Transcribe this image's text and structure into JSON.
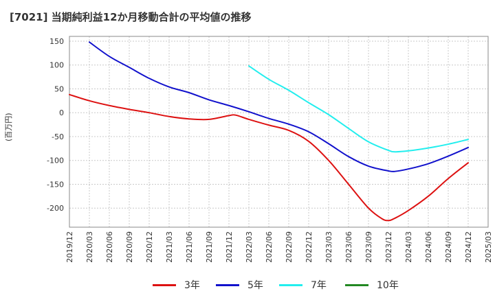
{
  "header": {
    "title": "[7021]  当期純利益12か月移動合計の平均値の推移"
  },
  "chart_data": {
    "type": "line",
    "title": "[7021]  当期純利益12か月移動合計の平均値の推移",
    "xlabel": "",
    "ylabel": "(百万円)",
    "ylim": [
      -240,
      160
    ],
    "yticks": [
      150,
      100,
      50,
      0,
      -50,
      -100,
      -150,
      -200
    ],
    "x_tick_labels": [
      "2019/12",
      "2020/03",
      "2020/06",
      "2020/09",
      "2020/12",
      "2021/03",
      "2021/06",
      "2021/09",
      "2021/12",
      "2022/03",
      "2022/06",
      "2022/09",
      "2022/12",
      "2023/03",
      "2023/06",
      "2023/09",
      "2023/12",
      "2024/03",
      "2024/06",
      "2024/09",
      "2024/12",
      "2025/03"
    ],
    "grid": true,
    "legend_position": "bottom",
    "series": [
      {
        "name": "3年",
        "color": "#dd1111",
        "x": [
          "2019/12",
          "2020/03",
          "2020/06",
          "2020/09",
          "2020/12",
          "2021/03",
          "2021/06",
          "2021/09",
          "2021/12",
          "2022/01",
          "2022/03",
          "2022/06",
          "2022/09",
          "2022/12",
          "2023/03",
          "2023/06",
          "2023/09",
          "2023/11",
          "2023/12",
          "2024/01",
          "2024/03",
          "2024/06",
          "2024/09",
          "2024/12"
        ],
        "values": [
          38,
          25,
          15,
          7,
          0,
          -8,
          -13,
          -14,
          -6,
          -5,
          -14,
          -26,
          -37,
          -60,
          -100,
          -150,
          -200,
          -222,
          -226,
          -221,
          -205,
          -175,
          -138,
          -105
        ]
      },
      {
        "name": "5年",
        "color": "#1111cc",
        "x": [
          "2020/03",
          "2020/06",
          "2020/09",
          "2020/12",
          "2021/03",
          "2021/06",
          "2021/09",
          "2021/12",
          "2022/03",
          "2022/06",
          "2022/09",
          "2022/12",
          "2023/03",
          "2023/06",
          "2023/09",
          "2023/12",
          "2024/01",
          "2024/03",
          "2024/06",
          "2024/09",
          "2024/12"
        ],
        "values": [
          148,
          118,
          95,
          72,
          54,
          42,
          27,
          15,
          2,
          -12,
          -24,
          -40,
          -65,
          -92,
          -112,
          -122,
          -123,
          -118,
          -107,
          -91,
          -73
        ]
      },
      {
        "name": "7年",
        "color": "#22eeee",
        "x": [
          "2022/03",
          "2022/06",
          "2022/09",
          "2022/12",
          "2023/03",
          "2023/06",
          "2023/09",
          "2023/12",
          "2024/01",
          "2024/03",
          "2024/06",
          "2024/09",
          "2024/12"
        ],
        "values": [
          98,
          70,
          47,
          21,
          -4,
          -33,
          -61,
          -79,
          -82,
          -80,
          -74,
          -66,
          -56
        ]
      },
      {
        "name": "10年",
        "color": "#228822",
        "x": [],
        "values": []
      }
    ]
  }
}
